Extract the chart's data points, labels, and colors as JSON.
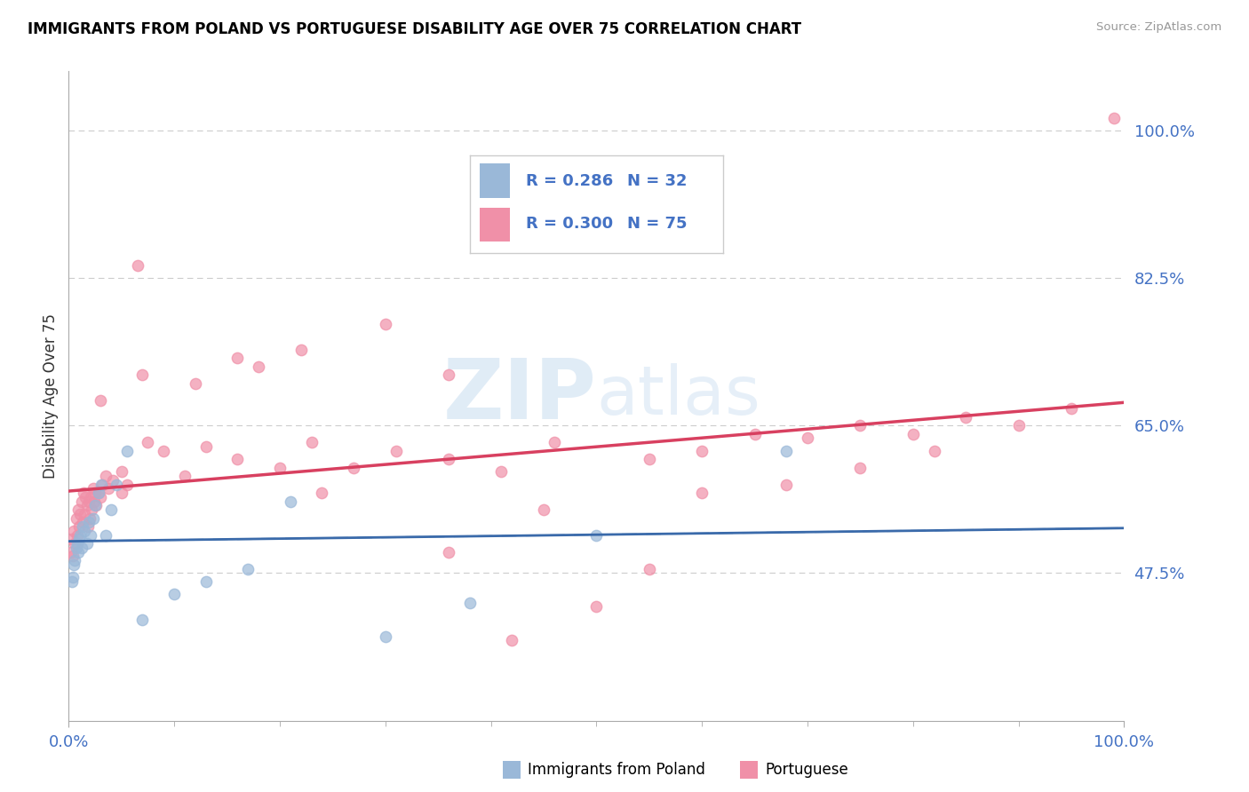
{
  "title": "IMMIGRANTS FROM POLAND VS PORTUGUESE DISABILITY AGE OVER 75 CORRELATION CHART",
  "source": "Source: ZipAtlas.com",
  "ylabel": "Disability Age Over 75",
  "yticks": [
    47.5,
    65.0,
    82.5,
    100.0
  ],
  "ytick_labels": [
    "47.5%",
    "65.0%",
    "82.5%",
    "100.0%"
  ],
  "xtick_labels": [
    "0.0%",
    "100.0%"
  ],
  "xmin": 0.0,
  "xmax": 100.0,
  "ymin": 30.0,
  "ymax": 107.0,
  "legend_r1": "R = 0.286",
  "legend_n1": "N = 32",
  "legend_r2": "R = 0.300",
  "legend_n2": "N = 75",
  "poland_color": "#9ab8d8",
  "portuguese_color": "#f090a8",
  "trend_poland_color": "#3a6aaa",
  "trend_portuguese_color": "#d84060",
  "tick_color": "#4472c4",
  "watermark_color": "#c8ddf0",
  "poland_x": [
    0.3,
    0.4,
    0.5,
    0.6,
    0.7,
    0.8,
    0.9,
    1.0,
    1.1,
    1.2,
    1.3,
    1.5,
    1.7,
    1.9,
    2.1,
    2.3,
    2.5,
    2.8,
    3.1,
    3.5,
    4.0,
    4.5,
    5.5,
    7.0,
    10.0,
    13.0,
    17.0,
    21.0,
    30.0,
    38.0,
    50.0,
    68.0
  ],
  "poland_y": [
    46.5,
    47.0,
    48.5,
    49.0,
    50.5,
    51.0,
    50.0,
    51.5,
    52.0,
    50.5,
    53.0,
    52.5,
    51.0,
    53.5,
    52.0,
    54.0,
    55.5,
    57.0,
    58.0,
    52.0,
    55.0,
    58.0,
    62.0,
    42.0,
    45.0,
    46.5,
    48.0,
    56.0,
    40.0,
    44.0,
    52.0,
    62.0
  ],
  "portuguese_x": [
    0.2,
    0.3,
    0.4,
    0.5,
    0.6,
    0.7,
    0.8,
    0.9,
    1.0,
    1.1,
    1.2,
    1.3,
    1.4,
    1.5,
    1.6,
    1.7,
    1.8,
    1.9,
    2.0,
    2.1,
    2.2,
    2.3,
    2.4,
    2.5,
    2.6,
    2.8,
    3.0,
    3.2,
    3.5,
    3.8,
    4.2,
    5.0,
    5.5,
    6.5,
    7.5,
    9.0,
    11.0,
    13.0,
    16.0,
    20.0,
    23.0,
    27.0,
    31.0,
    36.0,
    41.0,
    46.0,
    50.0,
    55.0,
    60.0,
    65.0,
    70.0,
    75.0,
    80.0,
    85.0,
    90.0,
    95.0,
    99.0,
    3.0,
    5.0,
    7.0,
    16.0,
    22.0,
    30.0,
    36.0,
    42.0,
    12.0,
    18.0,
    24.0,
    36.0,
    45.0,
    55.0,
    60.0,
    68.0,
    75.0,
    82.0
  ],
  "portuguese_y": [
    50.0,
    51.5,
    49.5,
    52.5,
    51.0,
    54.0,
    52.0,
    55.0,
    53.0,
    54.5,
    56.0,
    53.5,
    57.0,
    54.5,
    56.5,
    55.5,
    53.0,
    56.0,
    54.0,
    56.5,
    55.0,
    57.5,
    56.0,
    57.0,
    55.5,
    57.0,
    56.5,
    58.0,
    59.0,
    57.5,
    58.5,
    59.5,
    58.0,
    84.0,
    63.0,
    62.0,
    59.0,
    62.5,
    61.0,
    60.0,
    63.0,
    60.0,
    62.0,
    61.0,
    59.5,
    63.0,
    43.5,
    61.0,
    62.0,
    64.0,
    63.5,
    65.0,
    64.0,
    66.0,
    65.0,
    67.0,
    101.5,
    68.0,
    57.0,
    71.0,
    73.0,
    74.0,
    77.0,
    71.0,
    39.5,
    70.0,
    72.0,
    57.0,
    50.0,
    55.0,
    48.0,
    57.0,
    58.0,
    60.0,
    62.0
  ]
}
